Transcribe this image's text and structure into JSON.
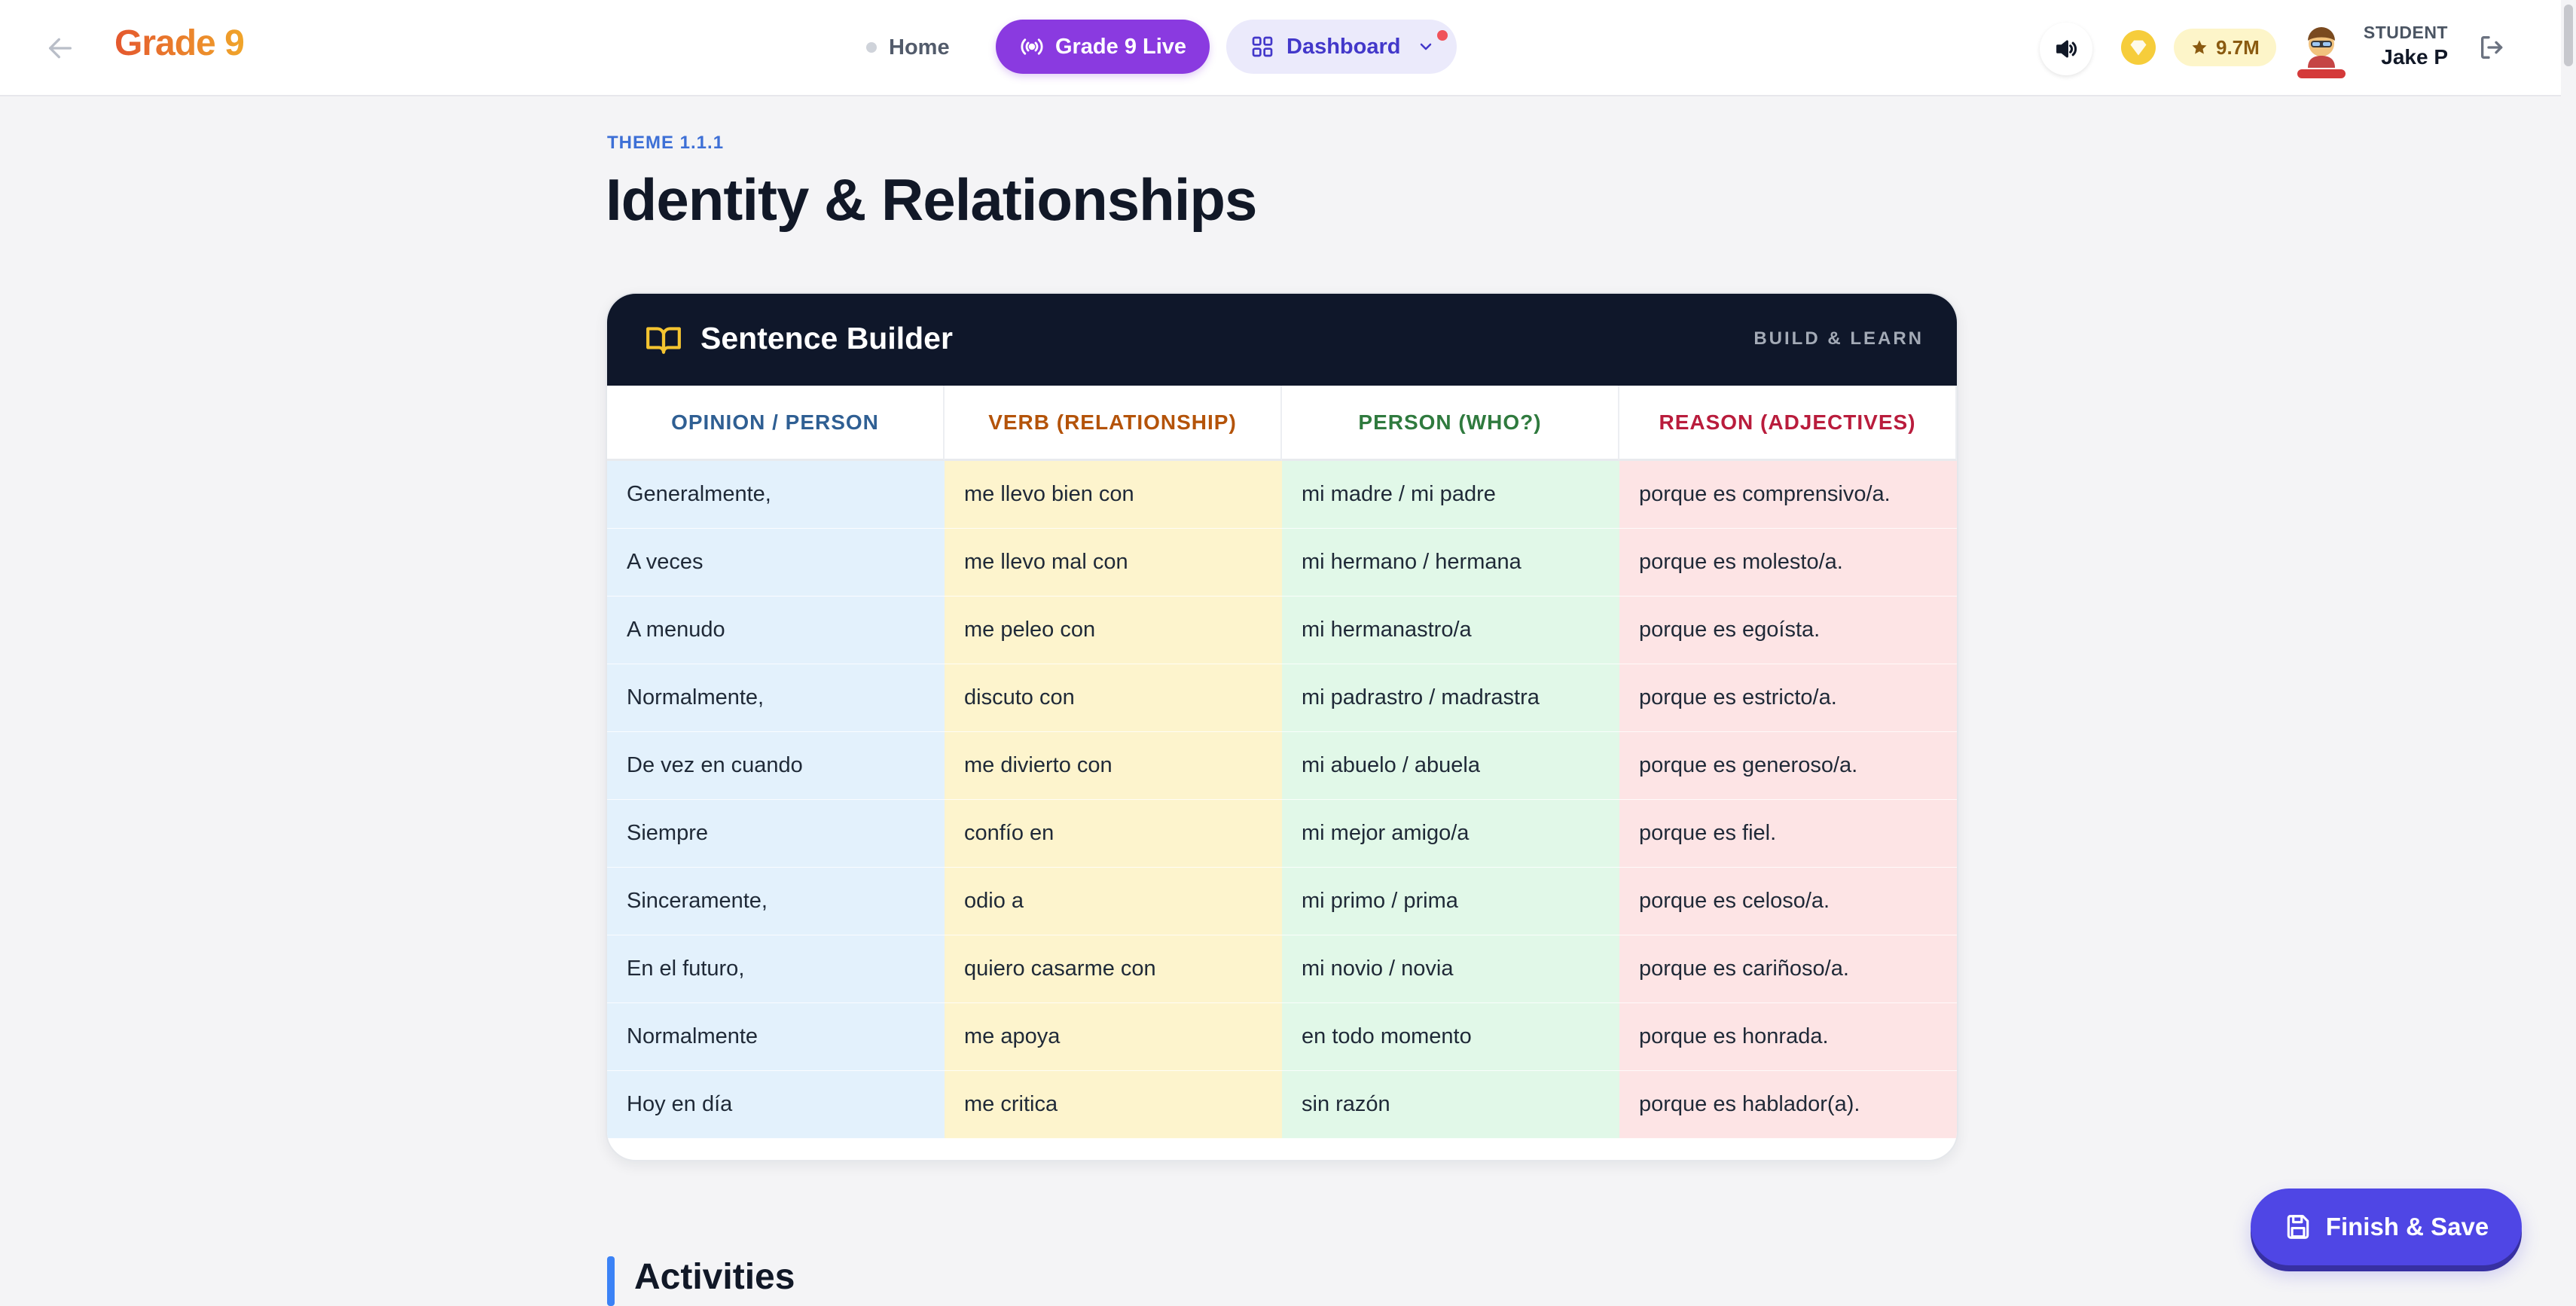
{
  "header": {
    "logo": "Grade 9",
    "nav": {
      "home": "Home",
      "live": "Grade 9 Live",
      "dashboard": "Dashboard"
    },
    "points": "9.7M",
    "user": {
      "role": "STUDENT",
      "name": "Jake P"
    }
  },
  "page": {
    "theme_label": "THEME 1.1.1",
    "title": "Identity & Relationships"
  },
  "sentence_builder": {
    "title": "Sentence Builder",
    "tag": "BUILD & LEARN",
    "columns": [
      {
        "header": "OPINION / PERSON",
        "header_color": "#2f5f93",
        "bg": "#e3f1fc",
        "cells": [
          "Generalmente,",
          "A veces",
          "A menudo",
          "Normalmente,",
          "De vez en cuando",
          "Siempre",
          "Sinceramente,",
          "En el futuro,",
          "Normalmente",
          "Hoy en día"
        ]
      },
      {
        "header": "VERB (RELATIONSHIP)",
        "header_color": "#b45309",
        "bg": "#fdf4cd",
        "cells": [
          "me llevo bien con",
          "me llevo mal con",
          "me peleo con",
          "discuto con",
          "me divierto con",
          "confío en",
          "odio a",
          "quiero casarme con",
          "me apoya",
          "me critica"
        ]
      },
      {
        "header": "PERSON (WHO?)",
        "header_color": "#2f7a3e",
        "bg": "#e1f8e8",
        "cells": [
          "mi madre / mi padre",
          "mi hermano / hermana",
          "mi hermanastro/a",
          "mi padrastro / madrastra",
          "mi abuelo / abuela",
          "mi mejor amigo/a",
          "mi primo / prima",
          "mi novio / novia",
          "en todo momento",
          "sin razón"
        ]
      },
      {
        "header": "REASON (ADJECTIVES)",
        "header_color": "#b91c3c",
        "bg": "#fde4e5",
        "cells": [
          "porque es comprensivo/a.",
          "porque es molesto/a.",
          "porque es egoísta.",
          "porque es estricto/a.",
          "porque es generoso/a.",
          "porque es fiel.",
          "porque es celoso/a.",
          "porque es cariñoso/a.",
          "porque es honrada.",
          "porque es hablador(a)."
        ]
      }
    ]
  },
  "activities": {
    "title": "Activities"
  },
  "finish_button": "Finish & Save",
  "icons": {
    "back": "back-arrow-icon",
    "live": "broadcast-icon",
    "dashboard": "grid-icon",
    "sound": "speaker-icon",
    "gem": "gem-icon",
    "star": "star-icon",
    "logout": "logout-icon",
    "book": "book-icon",
    "save": "save-icon"
  }
}
